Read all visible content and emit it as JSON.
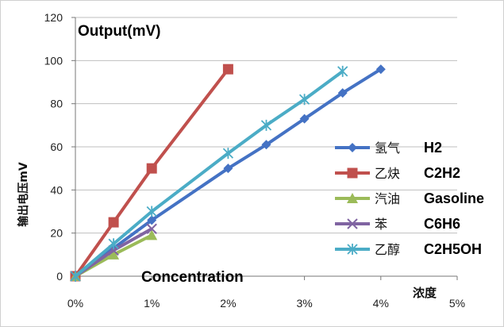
{
  "chart_data": {
    "type": "line",
    "ylabel": "输出电压mV",
    "xlabel": "浓度",
    "annotations": {
      "output": "Output(mV)",
      "concentration": "Concentration"
    },
    "xlim": [
      0,
      5
    ],
    "ylim": [
      0,
      120
    ],
    "x_ticks": [
      "0%",
      "1%",
      "2%",
      "3%",
      "4%",
      "5%"
    ],
    "y_ticks": [
      "0",
      "20",
      "40",
      "60",
      "80",
      "100",
      "120"
    ],
    "grid": "horizontal",
    "legend_position": "right",
    "series": [
      {
        "name": "氢气",
        "label_en": "H2",
        "color": "#4472C4",
        "marker": "diamond",
        "x": [
          0,
          0.5,
          1,
          2,
          2.5,
          3,
          3.5,
          4
        ],
        "y": [
          0,
          13,
          26,
          50,
          61,
          73,
          85,
          96
        ]
      },
      {
        "name": "乙炔",
        "label_en": "C2H2",
        "color": "#C0504D",
        "marker": "square",
        "x": [
          0,
          0.5,
          1,
          2
        ],
        "y": [
          0,
          25,
          50,
          96
        ]
      },
      {
        "name": "汽油",
        "label_en": "Gasoline",
        "color": "#9BBB59",
        "marker": "triangle",
        "x": [
          0,
          0.5,
          1
        ],
        "y": [
          0,
          10,
          19
        ]
      },
      {
        "name": "苯",
        "label_en": "C6H6",
        "color": "#8064A2",
        "marker": "x",
        "x": [
          0,
          0.5,
          1
        ],
        "y": [
          0,
          12,
          22
        ]
      },
      {
        "name": "乙醇",
        "label_en": "C2H5OH",
        "color": "#4BACC6",
        "marker": "star",
        "x": [
          0,
          0.5,
          1,
          2,
          2.5,
          3,
          3.5
        ],
        "y": [
          0,
          15,
          30,
          57,
          70,
          82,
          95
        ]
      }
    ]
  }
}
